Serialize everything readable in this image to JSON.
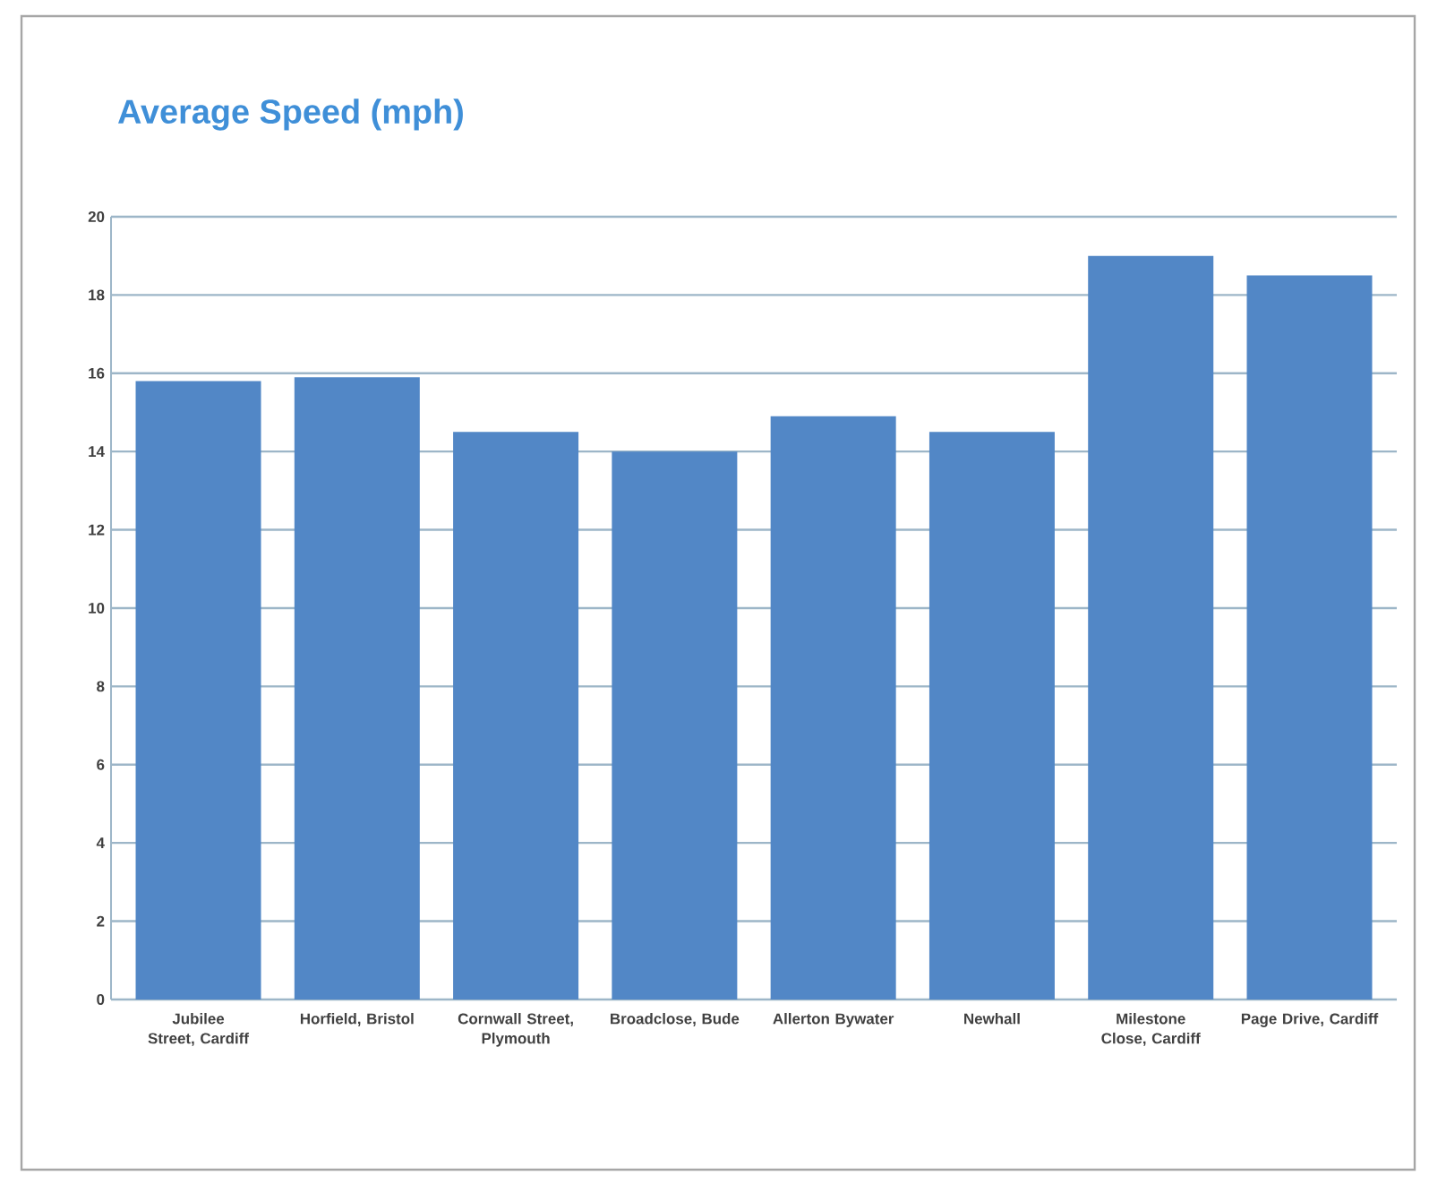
{
  "chart_data": {
    "type": "bar",
    "title": "Average Speed (mph)",
    "categories": [
      "Jubilee Street, Cardiff",
      "Horfield, Bristol",
      "Cornwall Street, Plymouth",
      "Broadclose, Bude",
      "Allerton Bywater",
      "Newhall",
      "Milestone Close, Cardiff",
      "Page Drive, Cardiff"
    ],
    "values": [
      15.8,
      15.9,
      14.5,
      14.0,
      14.9,
      14.5,
      19.0,
      18.5
    ],
    "color": "#5287c6",
    "ylim": [
      0,
      20
    ],
    "yticks": [
      0,
      2,
      4,
      6,
      8,
      10,
      12,
      14,
      16,
      18,
      20
    ],
    "grid": "y"
  }
}
